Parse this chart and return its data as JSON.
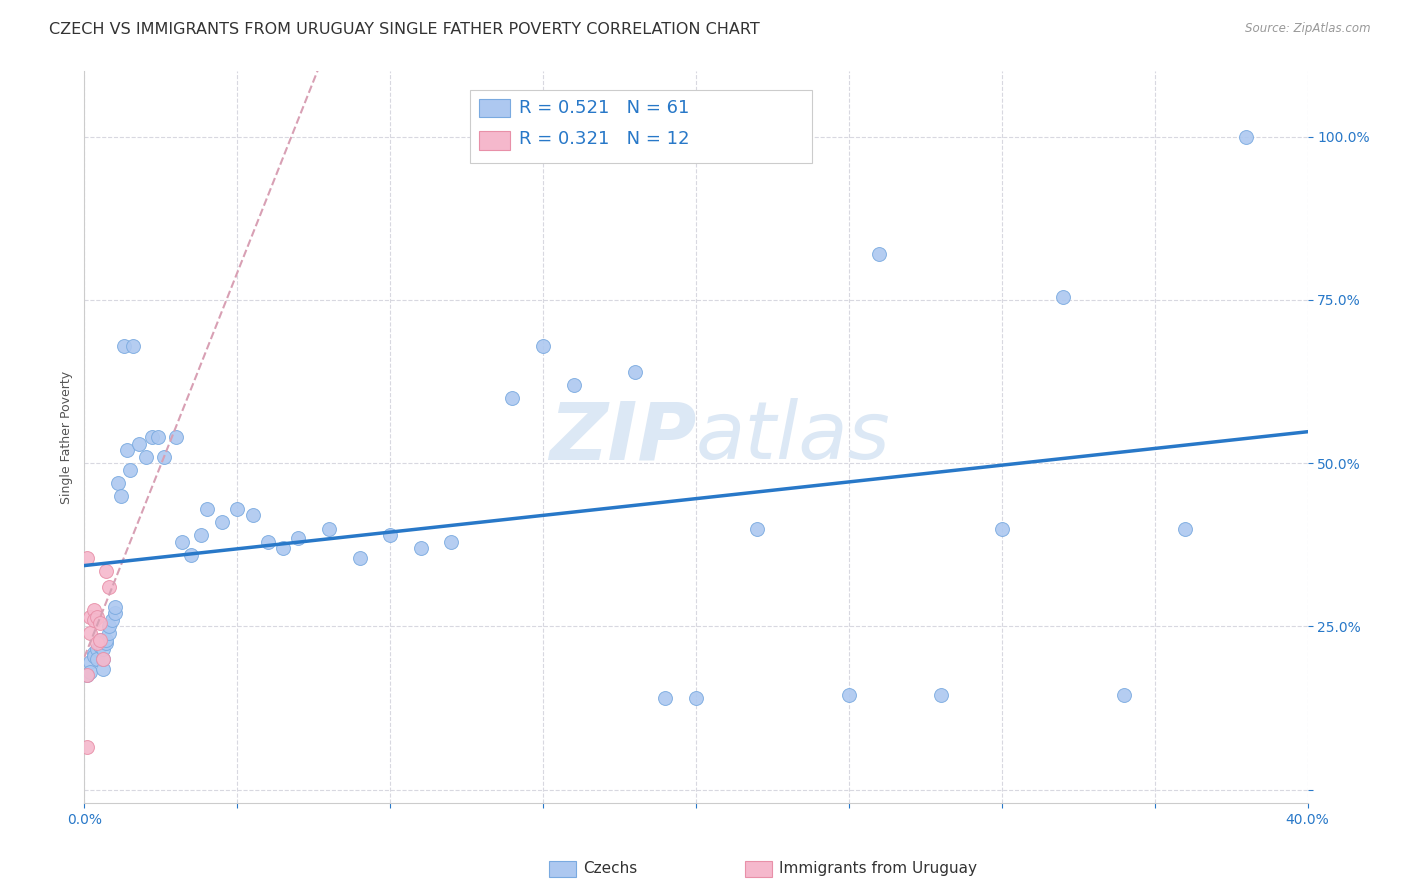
{
  "title": "CZECH VS IMMIGRANTS FROM URUGUAY SINGLE FATHER POVERTY CORRELATION CHART",
  "source": "Source: ZipAtlas.com",
  "ylabel_label": "Single Father Poverty",
  "xlim": [
    0.0,
    0.4
  ],
  "ylim": [
    -0.02,
    1.1
  ],
  "xticks": [
    0.0,
    0.05,
    0.1,
    0.15,
    0.2,
    0.25,
    0.3,
    0.35,
    0.4
  ],
  "xticklabels": [
    "0.0%",
    "",
    "",
    "",
    "",
    "",
    "",
    "",
    "40.0%"
  ],
  "ytick_positions": [
    0.0,
    0.25,
    0.5,
    0.75,
    1.0
  ],
  "yticklabels": [
    "",
    "25.0%",
    "50.0%",
    "75.0%",
    "100.0%"
  ],
  "czech_color": "#adc8f0",
  "czech_edge_color": "#7aaae0",
  "uruguay_color": "#f5b8cc",
  "uruguay_edge_color": "#e890a8",
  "line_czech_color": "#2878c8",
  "line_uruguay_color": "#d8a0b4",
  "grid_color": "#d8d8e0",
  "background_color": "#ffffff",
  "watermark_color": "#dce8f5",
  "czech_x": [
    0.001,
    0.002,
    0.002,
    0.003,
    0.003,
    0.004,
    0.004,
    0.005,
    0.005,
    0.006,
    0.006,
    0.006,
    0.007,
    0.007,
    0.008,
    0.008,
    0.009,
    0.01,
    0.01,
    0.011,
    0.012,
    0.013,
    0.014,
    0.015,
    0.016,
    0.018,
    0.02,
    0.022,
    0.024,
    0.026,
    0.03,
    0.032,
    0.035,
    0.038,
    0.04,
    0.045,
    0.05,
    0.055,
    0.06,
    0.065,
    0.07,
    0.08,
    0.09,
    0.1,
    0.11,
    0.12,
    0.14,
    0.15,
    0.16,
    0.18,
    0.19,
    0.2,
    0.22,
    0.25,
    0.26,
    0.28,
    0.3,
    0.32,
    0.34,
    0.36,
    0.38
  ],
  "czech_y": [
    0.175,
    0.195,
    0.18,
    0.21,
    0.205,
    0.215,
    0.2,
    0.22,
    0.23,
    0.185,
    0.2,
    0.215,
    0.225,
    0.23,
    0.24,
    0.25,
    0.26,
    0.27,
    0.28,
    0.47,
    0.45,
    0.68,
    0.52,
    0.49,
    0.68,
    0.53,
    0.51,
    0.54,
    0.54,
    0.51,
    0.54,
    0.38,
    0.36,
    0.39,
    0.43,
    0.41,
    0.43,
    0.42,
    0.38,
    0.37,
    0.385,
    0.4,
    0.355,
    0.39,
    0.37,
    0.38,
    0.6,
    0.68,
    0.62,
    0.64,
    0.14,
    0.14,
    0.4,
    0.145,
    0.82,
    0.145,
    0.4,
    0.755,
    0.145,
    0.4,
    1.0
  ],
  "uruguay_x": [
    0.001,
    0.002,
    0.002,
    0.003,
    0.003,
    0.004,
    0.004,
    0.005,
    0.005,
    0.006,
    0.007,
    0.008
  ],
  "uruguay_y": [
    0.175,
    0.265,
    0.24,
    0.275,
    0.26,
    0.225,
    0.265,
    0.255,
    0.23,
    0.2,
    0.335,
    0.31
  ],
  "uruguay_outlier_x": [
    0.001
  ],
  "uruguay_outlier_y": [
    0.355
  ],
  "uruguay_low_x": [
    0.001
  ],
  "uruguay_low_y": [
    0.065
  ],
  "marker_size": 100,
  "title_fontsize": 11.5,
  "axis_label_fontsize": 9,
  "tick_fontsize": 10,
  "legend_fontsize": 13
}
